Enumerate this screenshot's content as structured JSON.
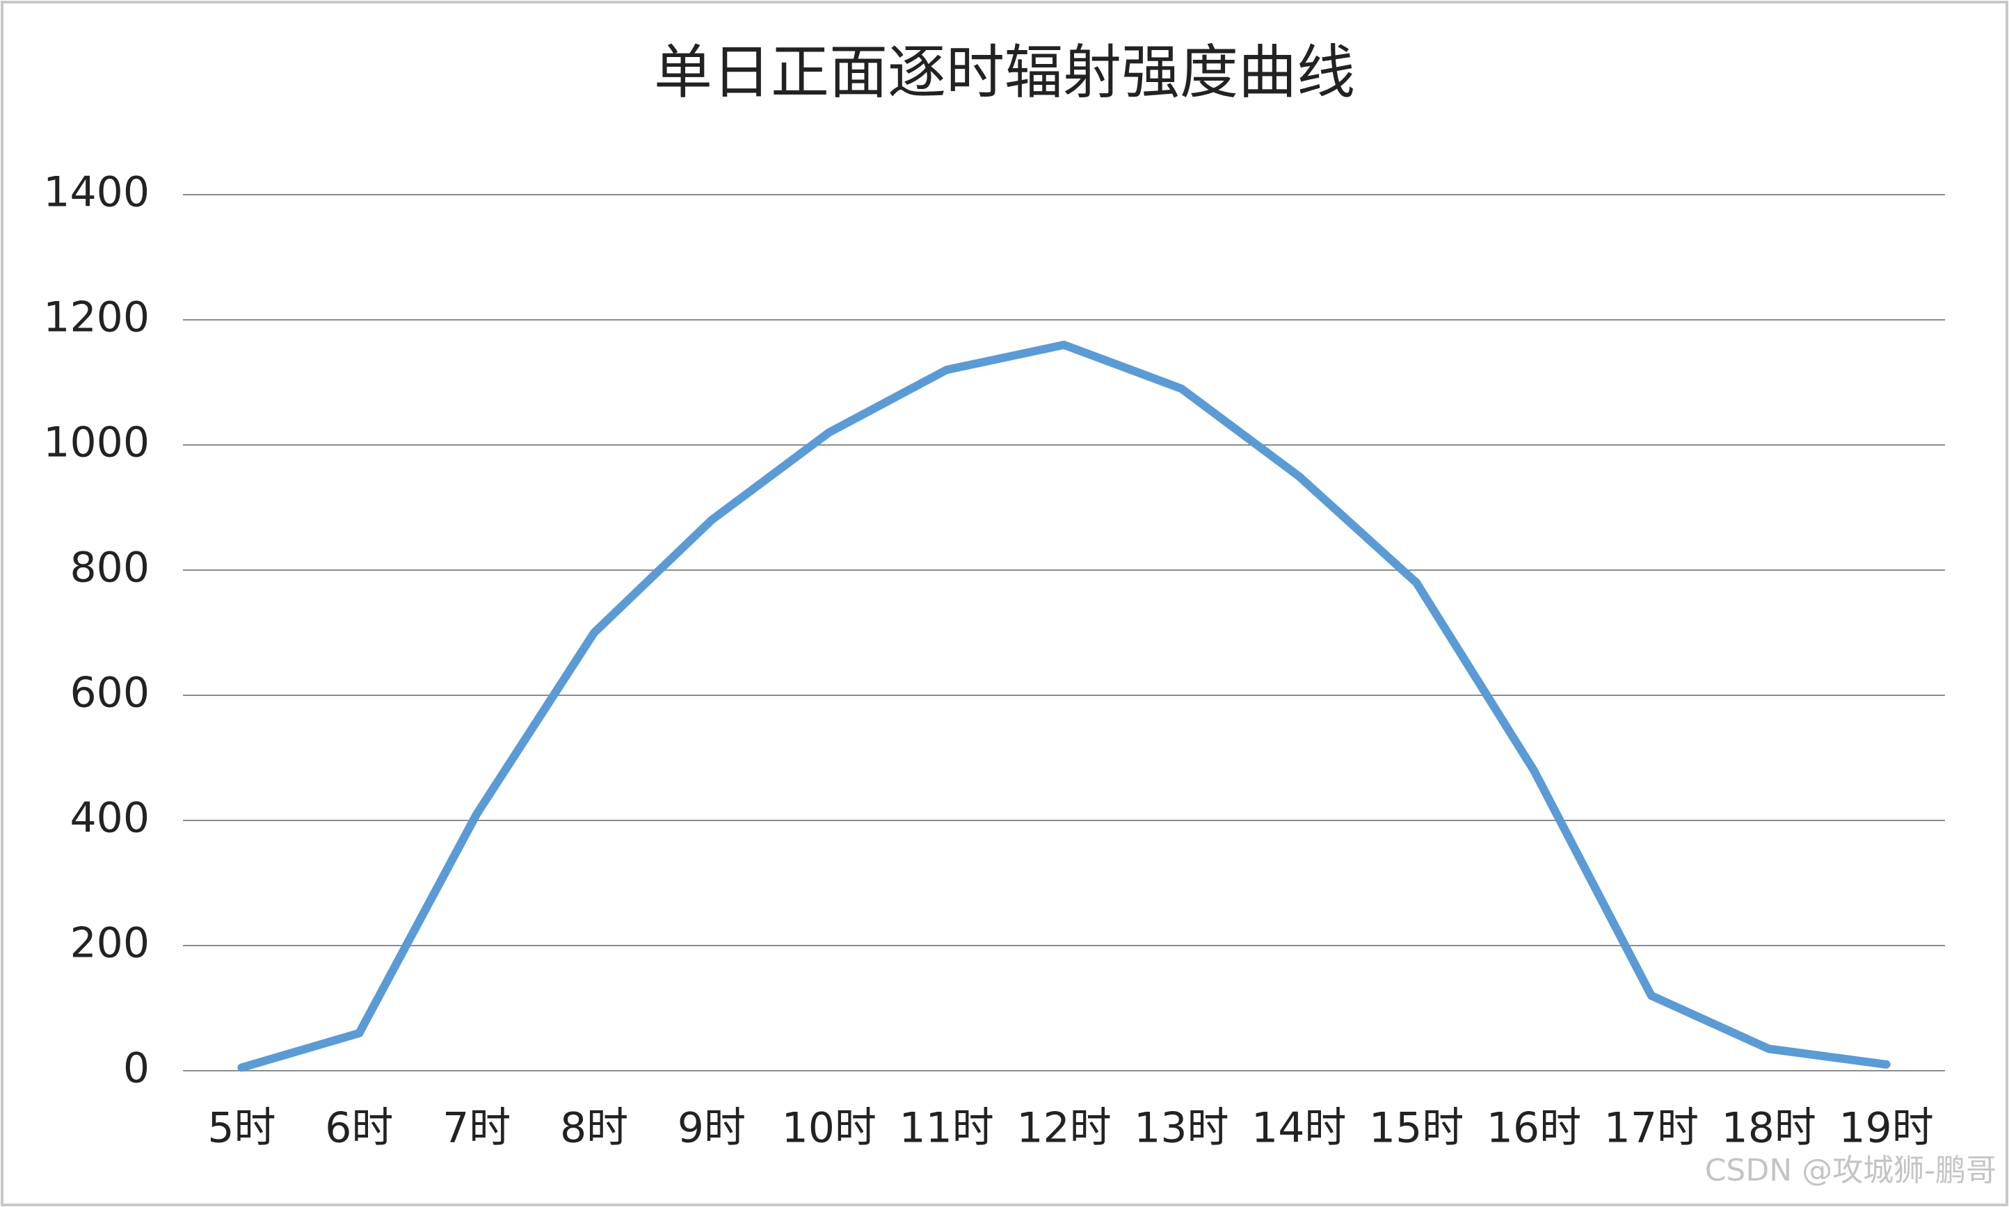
{
  "chart_data": {
    "type": "line",
    "title": "单日正面逐时辐射强度曲线",
    "categories": [
      "5时",
      "6时",
      "7时",
      "8时",
      "9时",
      "10时",
      "11时",
      "12时",
      "13时",
      "14时",
      "15时",
      "16时",
      "17时",
      "18时",
      "19时"
    ],
    "series": [
      {
        "color": "#5b9bd5",
        "values": [
          5,
          60,
          410,
          700,
          880,
          1020,
          1120,
          1160,
          1090,
          950,
          780,
          480,
          120,
          35,
          10
        ]
      }
    ],
    "ylim": [
      0,
      1400
    ],
    "yticks": [
      0,
      200,
      400,
      600,
      800,
      1000,
      1200,
      1400
    ],
    "grid": true
  },
  "watermark": "CSDN @攻城狮-鹏哥"
}
